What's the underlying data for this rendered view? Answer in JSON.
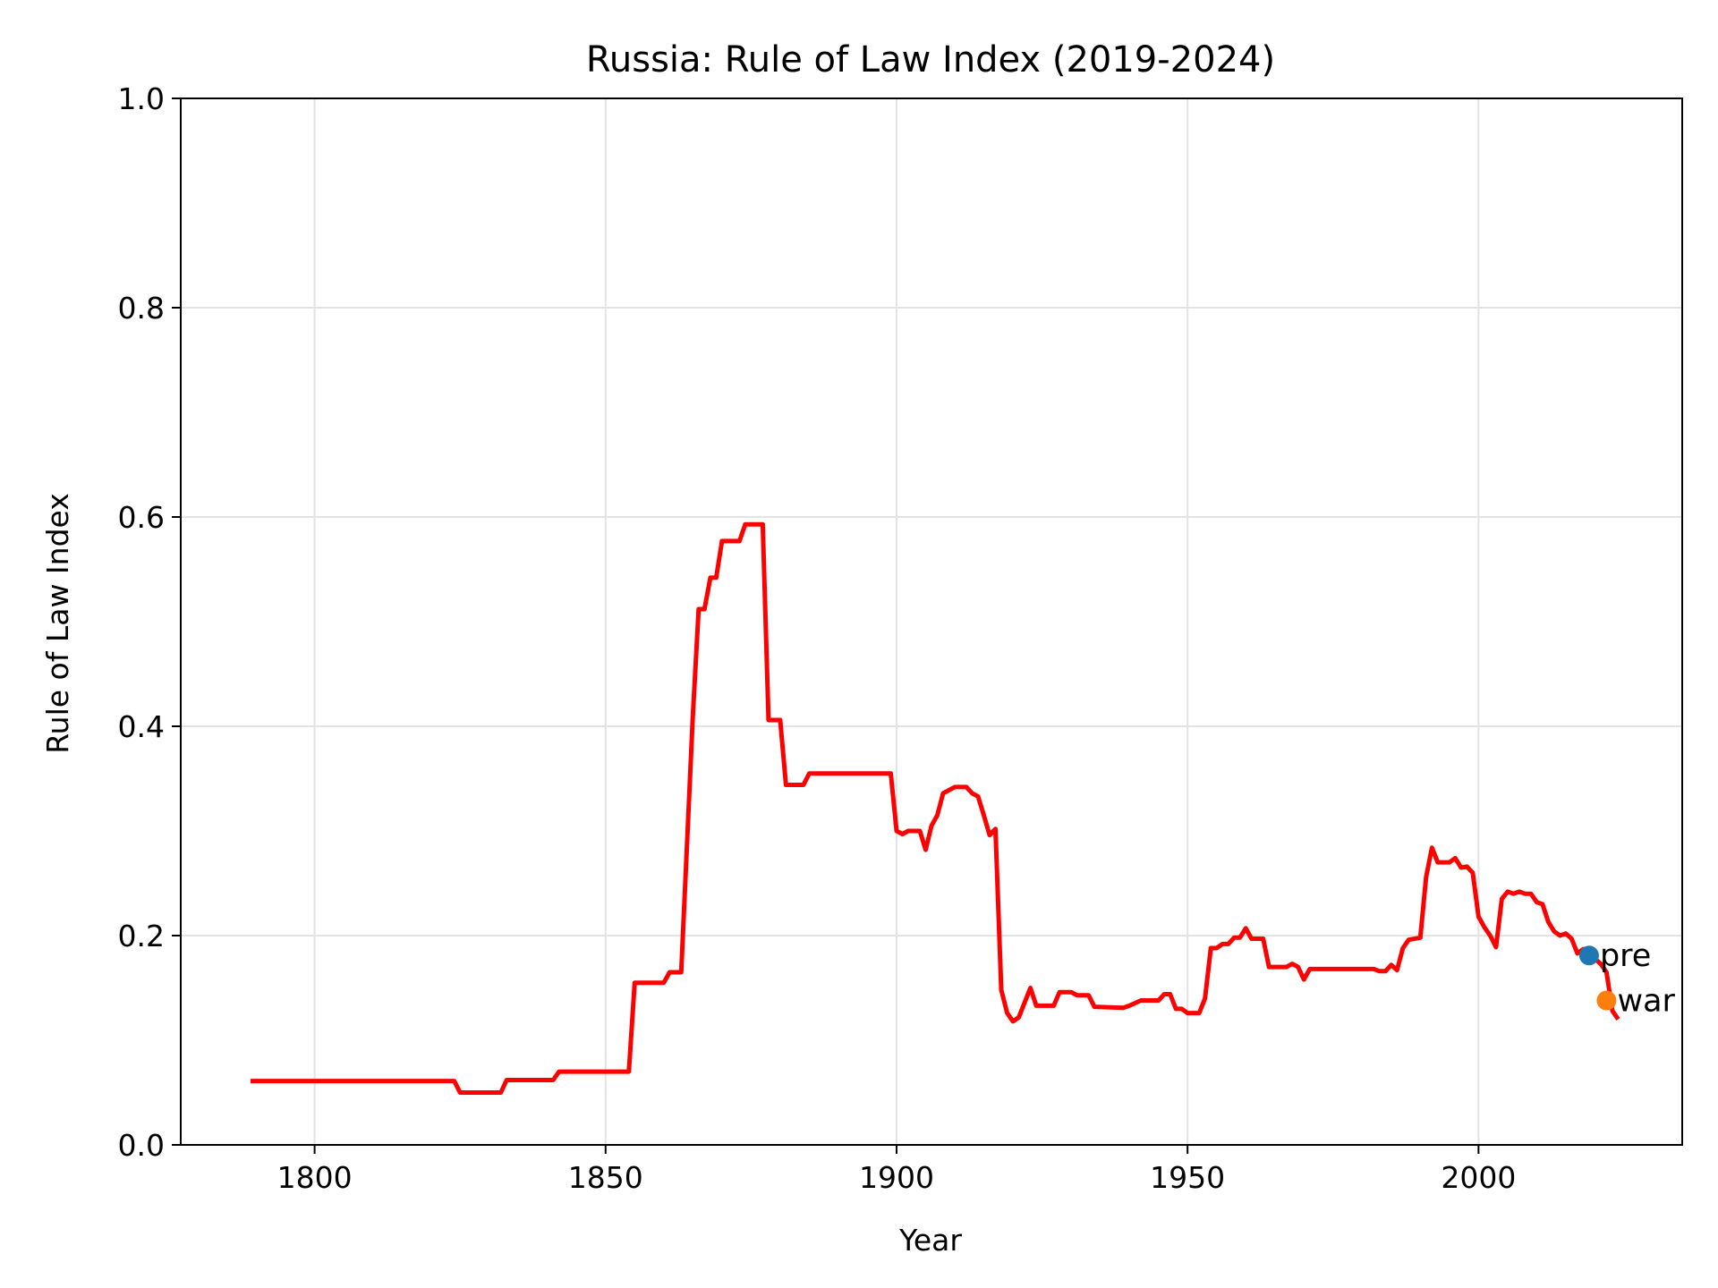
{
  "chart_data": {
    "type": "line",
    "title": "Russia: Rule of Law Index (2019-2024)",
    "xlabel": "Year",
    "ylabel": "Rule of Law Index",
    "xlim": [
      1777,
      2035
    ],
    "ylim": [
      0.0,
      1.0
    ],
    "xticks": [
      1800,
      1850,
      1900,
      1950,
      2000
    ],
    "yticks": [
      0.0,
      0.2,
      0.4,
      0.6,
      0.8,
      1.0
    ],
    "ytick_labels": [
      "0.0",
      "0.2",
      "0.4",
      "0.6",
      "0.8",
      "1.0"
    ],
    "grid": true,
    "series": [
      {
        "color": "#ff0000",
        "points": [
          [
            1789,
            0.061
          ],
          [
            1824,
            0.061
          ],
          [
            1825,
            0.05
          ],
          [
            1832,
            0.05
          ],
          [
            1833,
            0.062
          ],
          [
            1841,
            0.062
          ],
          [
            1842,
            0.07
          ],
          [
            1854,
            0.07
          ],
          [
            1855,
            0.155
          ],
          [
            1860,
            0.155
          ],
          [
            1861,
            0.165
          ],
          [
            1863,
            0.165
          ],
          [
            1865,
            0.41
          ],
          [
            1866,
            0.512
          ],
          [
            1867,
            0.512
          ],
          [
            1868,
            0.542
          ],
          [
            1869,
            0.542
          ],
          [
            1870,
            0.577
          ],
          [
            1873,
            0.577
          ],
          [
            1874,
            0.593
          ],
          [
            1877,
            0.593
          ],
          [
            1878,
            0.406
          ],
          [
            1880,
            0.406
          ],
          [
            1881,
            0.344
          ],
          [
            1884,
            0.344
          ],
          [
            1885,
            0.355
          ],
          [
            1899,
            0.355
          ],
          [
            1900,
            0.3
          ],
          [
            1901,
            0.297
          ],
          [
            1902,
            0.3
          ],
          [
            1904,
            0.3
          ],
          [
            1905,
            0.282
          ],
          [
            1906,
            0.305
          ],
          [
            1907,
            0.315
          ],
          [
            1908,
            0.336
          ],
          [
            1910,
            0.342
          ],
          [
            1912,
            0.342
          ],
          [
            1913,
            0.336
          ],
          [
            1914,
            0.333
          ],
          [
            1915,
            0.315
          ],
          [
            1916,
            0.296
          ],
          [
            1917,
            0.302
          ],
          [
            1918,
            0.148
          ],
          [
            1919,
            0.126
          ],
          [
            1920,
            0.118
          ],
          [
            1921,
            0.122
          ],
          [
            1923,
            0.15
          ],
          [
            1924,
            0.133
          ],
          [
            1927,
            0.133
          ],
          [
            1928,
            0.146
          ],
          [
            1930,
            0.146
          ],
          [
            1931,
            0.143
          ],
          [
            1933,
            0.143
          ],
          [
            1934,
            0.132
          ],
          [
            1939,
            0.131
          ],
          [
            1940,
            0.133
          ],
          [
            1942,
            0.138
          ],
          [
            1945,
            0.138
          ],
          [
            1946,
            0.144
          ],
          [
            1947,
            0.144
          ],
          [
            1948,
            0.13
          ],
          [
            1949,
            0.13
          ],
          [
            1950,
            0.126
          ],
          [
            1952,
            0.126
          ],
          [
            1953,
            0.14
          ],
          [
            1954,
            0.188
          ],
          [
            1955,
            0.188
          ],
          [
            1956,
            0.192
          ],
          [
            1957,
            0.192
          ],
          [
            1958,
            0.198
          ],
          [
            1959,
            0.198
          ],
          [
            1960,
            0.207
          ],
          [
            1961,
            0.197
          ],
          [
            1963,
            0.197
          ],
          [
            1964,
            0.17
          ],
          [
            1967,
            0.17
          ],
          [
            1968,
            0.173
          ],
          [
            1969,
            0.17
          ],
          [
            1970,
            0.158
          ],
          [
            1971,
            0.168
          ],
          [
            1982,
            0.168
          ],
          [
            1983,
            0.166
          ],
          [
            1984,
            0.166
          ],
          [
            1985,
            0.172
          ],
          [
            1986,
            0.167
          ],
          [
            1987,
            0.188
          ],
          [
            1988,
            0.196
          ],
          [
            1990,
            0.198
          ],
          [
            1991,
            0.256
          ],
          [
            1992,
            0.284
          ],
          [
            1993,
            0.27
          ],
          [
            1995,
            0.27
          ],
          [
            1996,
            0.274
          ],
          [
            1997,
            0.265
          ],
          [
            1998,
            0.266
          ],
          [
            1999,
            0.26
          ],
          [
            2000,
            0.218
          ],
          [
            2001,
            0.208
          ],
          [
            2002,
            0.2
          ],
          [
            2003,
            0.189
          ],
          [
            2004,
            0.235
          ],
          [
            2005,
            0.242
          ],
          [
            2006,
            0.24
          ],
          [
            2007,
            0.242
          ],
          [
            2008,
            0.24
          ],
          [
            2009,
            0.24
          ],
          [
            2010,
            0.232
          ],
          [
            2011,
            0.23
          ],
          [
            2012,
            0.213
          ],
          [
            2013,
            0.204
          ],
          [
            2014,
            0.2
          ],
          [
            2015,
            0.202
          ],
          [
            2016,
            0.197
          ],
          [
            2017,
            0.183
          ],
          [
            2018,
            0.187
          ],
          [
            2019,
            0.182
          ],
          [
            2020,
            0.178
          ],
          [
            2021,
            0.173
          ],
          [
            2022,
            0.165
          ],
          [
            2023,
            0.128
          ],
          [
            2024,
            0.12
          ]
        ]
      }
    ],
    "markers": [
      {
        "label": "pre",
        "x": 2019,
        "y": 0.181,
        "color": "#1f77b4"
      },
      {
        "label": "war",
        "x": 2022,
        "y": 0.138,
        "color": "#ff7f0e"
      }
    ]
  }
}
